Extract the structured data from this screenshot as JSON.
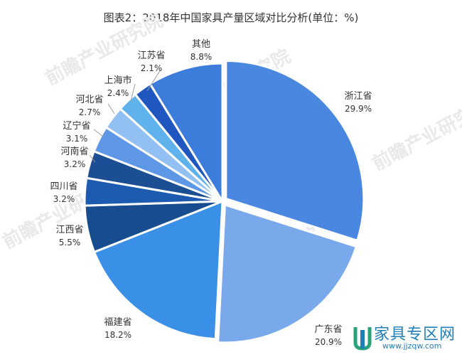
{
  "chart_data": {
    "type": "pie",
    "title": "图表2：2018年中国家具产量区域对比分析(单位：%)",
    "slices": [
      {
        "name": "浙江省",
        "value_label": "29.9%",
        "value": 29.9,
        "color": "#4a87e0"
      },
      {
        "name": "广东省",
        "value_label": "20.9%",
        "value": 20.9,
        "color": "#79a9ea"
      },
      {
        "name": "福建省",
        "value_label": "18.2%",
        "value": 18.2,
        "color": "#3a8fe6"
      },
      {
        "name": "江西省",
        "value_label": "5.5%",
        "value": 5.5,
        "color": "#174c8f"
      },
      {
        "name": "四川省",
        "value_label": "3.2%",
        "value": 3.2,
        "color": "#1d5bb1"
      },
      {
        "name": "河南省",
        "value_label": "3.2%",
        "value": 3.2,
        "color": "#1b4e92"
      },
      {
        "name": "辽宁省",
        "value_label": "3.1%",
        "value": 3.1,
        "color": "#5d97e6"
      },
      {
        "name": "河北省",
        "value_label": "2.7%",
        "value": 2.7,
        "color": "#92c0f2"
      },
      {
        "name": "上海市",
        "value_label": "2.4%",
        "value": 2.4,
        "color": "#5fb2ec"
      },
      {
        "name": "江苏省",
        "value_label": "2.1%",
        "value": 2.1,
        "color": "#1f56c0"
      },
      {
        "name": "其他",
        "value_label": "8.8%",
        "value": 8.8,
        "color": "#3c7ddb"
      }
    ]
  },
  "watermark": {
    "site_name": "家具专区网",
    "site_url": "www.jjzqw.com",
    "brand_text": "前瞻产业研究院"
  }
}
